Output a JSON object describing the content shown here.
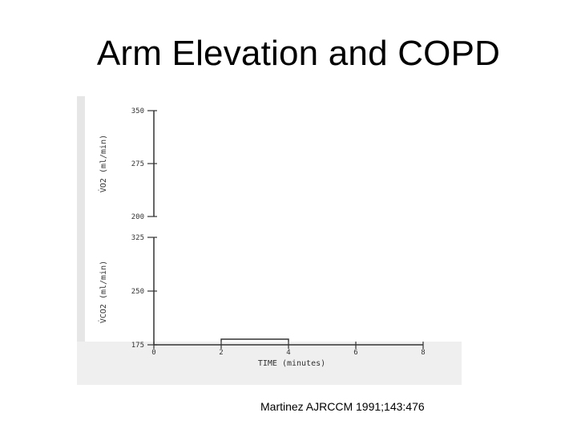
{
  "slide": {
    "title": "Arm Elevation and COPD",
    "citation": "Martinez AJRCCM 1991;143:476"
  },
  "chart_data": [
    {
      "type": "line",
      "panel": "top",
      "ylabel": "V̇O2 (ml/min)",
      "ylim": [
        200,
        350
      ],
      "yticks": [
        "350",
        "275",
        "200"
      ],
      "grid": false,
      "series": []
    },
    {
      "type": "line",
      "panel": "bottom",
      "xlabel": "TIME (minutes)",
      "ylabel": "V̇CO2 (ml/min)",
      "xlim": [
        0,
        8
      ],
      "xticks": [
        "0",
        "2",
        "4",
        "6",
        "8"
      ],
      "ylim": [
        175,
        325
      ],
      "yticks": [
        "325",
        "250",
        "175"
      ],
      "grid": false,
      "annotations": [
        {
          "type": "bracket",
          "x_start": 2,
          "x_end": 4
        }
      ],
      "series": []
    }
  ],
  "colors": {
    "axis": "#333333",
    "background": "#ffffff",
    "shade": "#e6e6e6"
  }
}
